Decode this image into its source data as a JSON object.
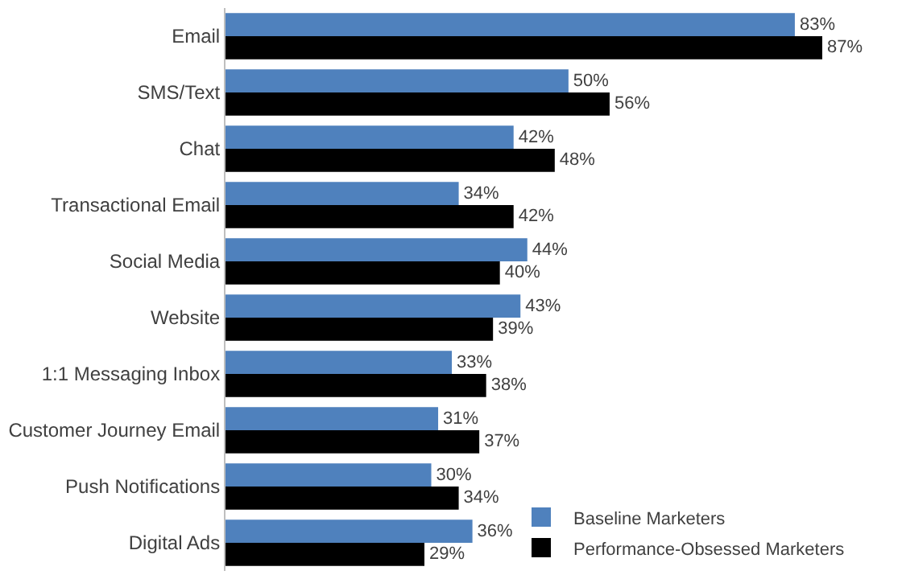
{
  "chart_data": {
    "type": "bar",
    "orientation": "horizontal",
    "categories": [
      "Email",
      "SMS/Text",
      "Chat",
      "Transactional Email",
      "Social Media",
      "Website",
      "1:1 Messaging Inbox",
      "Customer Journey Email",
      "Push Notifications",
      "Digital Ads"
    ],
    "series": [
      {
        "name": "Baseline Marketers",
        "color": "#4f81bd",
        "values": [
          83,
          50,
          42,
          34,
          44,
          43,
          33,
          31,
          30,
          36
        ],
        "value_labels": [
          "83%",
          "50%",
          "42%",
          "34%",
          "44%",
          "43%",
          "33%",
          "31%",
          "30%",
          "36%"
        ]
      },
      {
        "name": "Performance-Obsessed Marketers",
        "color": "#000000",
        "values": [
          87,
          56,
          48,
          42,
          40,
          39,
          38,
          37,
          34,
          29
        ],
        "value_labels": [
          "87%",
          "56%",
          "48%",
          "42%",
          "40%",
          "39%",
          "38%",
          "37%",
          "34%",
          "29%"
        ]
      }
    ],
    "legend": "bottom right"
  }
}
